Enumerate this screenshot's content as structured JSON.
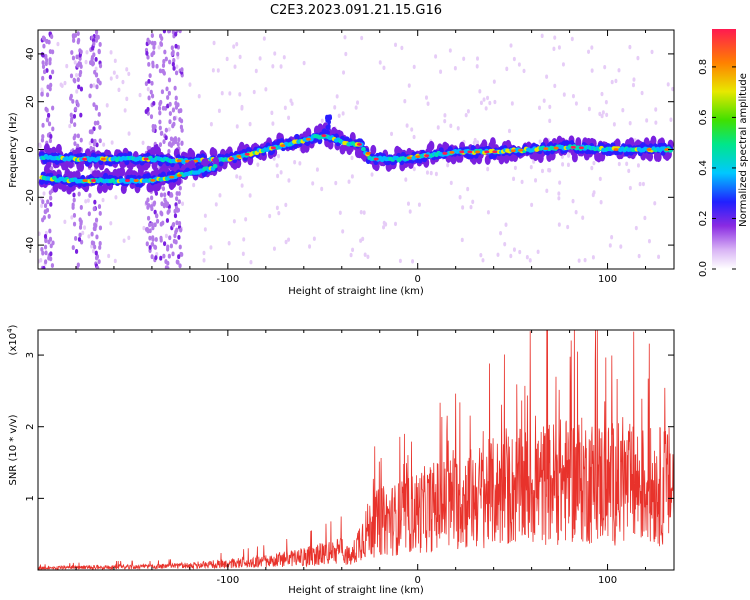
{
  "title": "C2E3.2023.091.21.15.G16",
  "chart_data": [
    {
      "type": "heatmap",
      "xlabel": "Height of straight line (km)",
      "ylabel": "Frequency (Hz)",
      "xlim": [
        -200,
        135
      ],
      "ylim": [
        -50,
        50
      ],
      "xticks": [
        -100,
        0,
        100
      ],
      "yticks": [
        -40,
        -20,
        0,
        20,
        40
      ],
      "xtick_labels": [
        "-100",
        "0",
        "100"
      ],
      "ytick_labels": [
        "-40",
        "-20",
        "0",
        "20",
        "40"
      ],
      "ridge": {
        "description": "main spectral ridge (frequency vs height)",
        "x": [
          -198,
          -180,
          -160,
          -140,
          -120,
          -100,
          -80,
          -65,
          -55,
          -48,
          -40,
          -30,
          -25,
          -20,
          -10,
          0,
          20,
          40,
          60,
          80,
          100,
          120,
          135
        ],
        "y": [
          -3,
          -4,
          -4,
          -4,
          -5,
          -4,
          0,
          3,
          5,
          6,
          3,
          2,
          -4,
          -4,
          -4,
          -3,
          -1,
          -1,
          0,
          1,
          0,
          0,
          0
        ]
      },
      "lower_branch": {
        "x": [
          -198,
          -180,
          -160,
          -140,
          -120,
          -105
        ],
        "y": [
          -12,
          -13,
          -13,
          -13,
          -10,
          -7
        ]
      },
      "colorbar": {
        "label": "Normalized spectral amplitude",
        "range": [
          0.0,
          0.95
        ],
        "ticks": [
          0.0,
          0.2,
          0.4,
          0.6,
          0.8
        ],
        "tick_labels": [
          "0.0",
          "0.2",
          "0.4",
          "0.6",
          "0.8"
        ]
      }
    },
    {
      "type": "line",
      "xlabel": "Height of straight line (km)",
      "ylabel": "SNR (10 * v/v)",
      "scale_label_prefix": "(x10",
      "scale_label_exp": "4",
      "scale_label_suffix": ")",
      "xlim": [
        -200,
        135
      ],
      "ylim": [
        0,
        3.35
      ],
      "xticks": [
        -100,
        0,
        100
      ],
      "yticks": [
        1,
        2,
        3
      ],
      "xtick_labels": [
        "-100",
        "0",
        "100"
      ],
      "ytick_labels": [
        "1",
        "2",
        "3"
      ],
      "color": "#e8322b",
      "series": [
        {
          "name": "SNR",
          "x": [
            -200,
            -180,
            -160,
            -140,
            -120,
            -100,
            -80,
            -60,
            -40,
            -35,
            -30,
            -25,
            -20,
            -10,
            0,
            10,
            20,
            40,
            60,
            80,
            100,
            120,
            135
          ],
          "y": [
            0.03,
            0.04,
            0.05,
            0.05,
            0.07,
            0.1,
            0.14,
            0.2,
            0.3,
            0.18,
            0.5,
            0.65,
            0.75,
            0.8,
            0.9,
            1.0,
            1.05,
            1.2,
            1.3,
            1.4,
            1.35,
            1.3,
            1.3
          ]
        }
      ]
    }
  ]
}
